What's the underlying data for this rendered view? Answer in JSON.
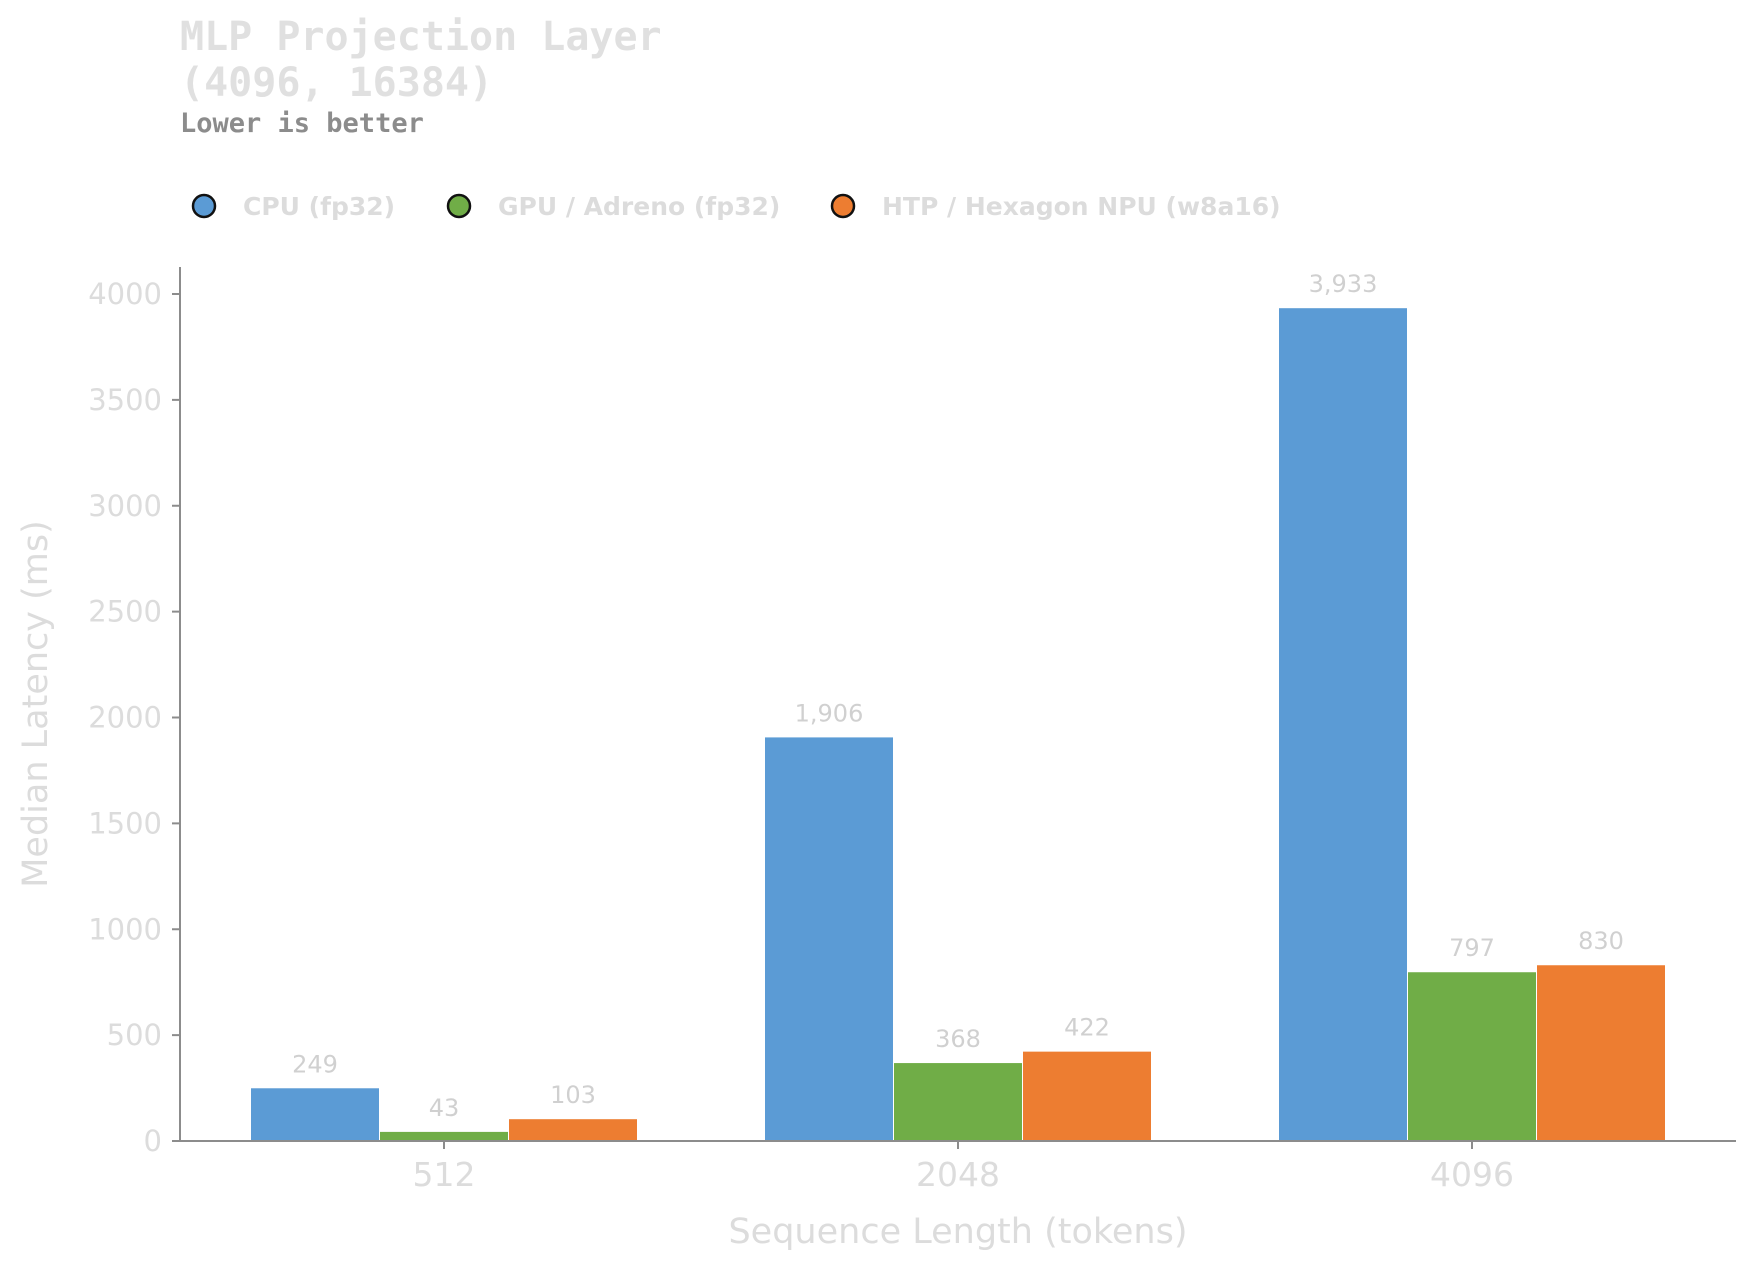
{
  "chart_data": {
    "type": "bar",
    "title_lines": [
      "MLP Projection Layer",
      "(4096, 16384)"
    ],
    "subtitle": "Lower is better",
    "xlabel": "Sequence Length (tokens)",
    "ylabel": "Median Latency (ms)",
    "categories": [
      "512",
      "2048",
      "4096"
    ],
    "ylim": [
      0,
      4100
    ],
    "yticks": [
      0,
      500,
      1000,
      1500,
      2000,
      2500,
      3000,
      3500,
      4000
    ],
    "legend_position": "top-left",
    "series": [
      {
        "name": "CPU (fp32)",
        "color": "#5b9bd5",
        "values": [
          249,
          1906,
          3933
        ],
        "labels": [
          "249",
          "1,906",
          "3,933"
        ]
      },
      {
        "name": "GPU / Adreno (fp32)",
        "color": "#70ad47",
        "values": [
          43,
          368,
          797
        ],
        "labels": [
          "43",
          "368",
          "797"
        ]
      },
      {
        "name": "HTP / Hexagon NPU (w8a16)",
        "color": "#ed7d31",
        "values": [
          103,
          422,
          830
        ],
        "labels": [
          "103",
          "422",
          "830"
        ]
      }
    ]
  }
}
